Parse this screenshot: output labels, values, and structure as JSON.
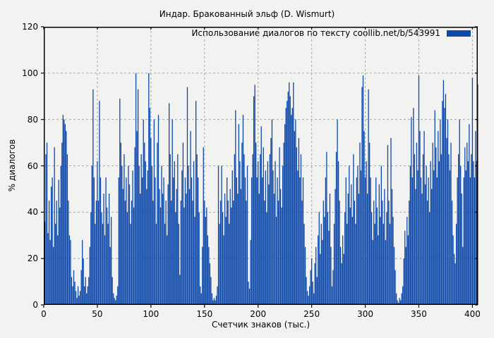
{
  "window": {
    "background": "#f2f2f0"
  },
  "chart": {
    "title": "Индар. Бракованный эльф (D. Wismurt)",
    "ylabel": "% диалогов",
    "xlabel": "Счетчик знаков (тыс.)",
    "legend_label": "Использование диалогов по тексту  coollib.net/b/543991"
  },
  "chart_data": {
    "type": "bar",
    "style": "impulses",
    "title": "Индар. Бракованный эльф (D. Wismurt)",
    "xlabel": "Счетчик знаков (тыс.)",
    "ylabel": "% диалогов",
    "legend": [
      "Использование диалогов по тексту  coollib.net/b/543991"
    ],
    "legend_position": "top-right-inside",
    "grid": true,
    "grid_color": "#a9a9a9",
    "bar_color": "#0d48aa",
    "axis_color": "#000000",
    "xlim": [
      0,
      405
    ],
    "ylim": [
      0,
      120
    ],
    "x_ticks": [
      0,
      50,
      100,
      150,
      200,
      250,
      300,
      350,
      400
    ],
    "y_ticks": [
      0,
      20,
      40,
      60,
      80,
      100,
      120
    ],
    "x_start": 1,
    "x_step": 1,
    "values": [
      36,
      65,
      70,
      31,
      45,
      28,
      51,
      55,
      25,
      68,
      35,
      45,
      30,
      54,
      42,
      60,
      70,
      82,
      80,
      78,
      75,
      65,
      45,
      30,
      28,
      12,
      8,
      15,
      10,
      6,
      3,
      8,
      4,
      6,
      15,
      28,
      20,
      8,
      12,
      5,
      8,
      12,
      25,
      40,
      60,
      93,
      55,
      35,
      45,
      62,
      45,
      88,
      55,
      40,
      35,
      48,
      30,
      55,
      42,
      35,
      48,
      25,
      38,
      12,
      5,
      3,
      2,
      4,
      8,
      55,
      89,
      70,
      60,
      50,
      65,
      45,
      55,
      40,
      60,
      52,
      35,
      45,
      58,
      42,
      68,
      100,
      75,
      93,
      60,
      48,
      65,
      55,
      80,
      70,
      62,
      50,
      58,
      100,
      85,
      72,
      60,
      45,
      80,
      55,
      35,
      70,
      82,
      50,
      42,
      60,
      48,
      55,
      35,
      45,
      30,
      52,
      87,
      65,
      45,
      80,
      55,
      62,
      40,
      50,
      65,
      35,
      13,
      45,
      58,
      70,
      42,
      55,
      48,
      94,
      60,
      50,
      75,
      55,
      45,
      62,
      38,
      88,
      65,
      55,
      40,
      8,
      5,
      25,
      68,
      45,
      38,
      42,
      30,
      25,
      18,
      12,
      5,
      2,
      3,
      2,
      4,
      8,
      60,
      35,
      45,
      60,
      40,
      30,
      48,
      38,
      55,
      45,
      35,
      50,
      42,
      58,
      45,
      65,
      84,
      55,
      48,
      78,
      62,
      50,
      70,
      82,
      65,
      55,
      45,
      60,
      10,
      7,
      28,
      55,
      65,
      90,
      95,
      70,
      55,
      62,
      48,
      65,
      77,
      55,
      68,
      45,
      58,
      40,
      62,
      52,
      65,
      72,
      80,
      58,
      48,
      62,
      38,
      55,
      45,
      68,
      50,
      42,
      60,
      70,
      78,
      85,
      88,
      92,
      96,
      90,
      82,
      85,
      96,
      75,
      80,
      68,
      58,
      72,
      55,
      65,
      45,
      55,
      35,
      25,
      12,
      6,
      4,
      8,
      15,
      20,
      10,
      5,
      18,
      25,
      12,
      30,
      40,
      22,
      35,
      28,
      45,
      38,
      55,
      66,
      40,
      32,
      48,
      25,
      8,
      15,
      35,
      50,
      66,
      80,
      62,
      45,
      25,
      18,
      30,
      22,
      40,
      55,
      35,
      48,
      60,
      42,
      52,
      38,
      65,
      45,
      35,
      55,
      60,
      48,
      70,
      58,
      94,
      99,
      75,
      55,
      62,
      48,
      93,
      70,
      55,
      40,
      28,
      45,
      35,
      55,
      42,
      30,
      52,
      38,
      60,
      45,
      35,
      50,
      28,
      40,
      69,
      45,
      35,
      72,
      50,
      38,
      25,
      15,
      5,
      2,
      1,
      3,
      2,
      5,
      8,
      20,
      32,
      25,
      38,
      30,
      45,
      60,
      81,
      55,
      85,
      65,
      50,
      70,
      58,
      99,
      75,
      55,
      48,
      65,
      75,
      52,
      60,
      45,
      55,
      40,
      62,
      50,
      70,
      58,
      84,
      68,
      55,
      75,
      62,
      80,
      65,
      88,
      97,
      85,
      91,
      72,
      80,
      65,
      58,
      70,
      45,
      30,
      22,
      18,
      35,
      55,
      65,
      80,
      60,
      48,
      25,
      55,
      68,
      58,
      70,
      62,
      78,
      55,
      65,
      98,
      62,
      55,
      75,
      62,
      95
    ]
  }
}
